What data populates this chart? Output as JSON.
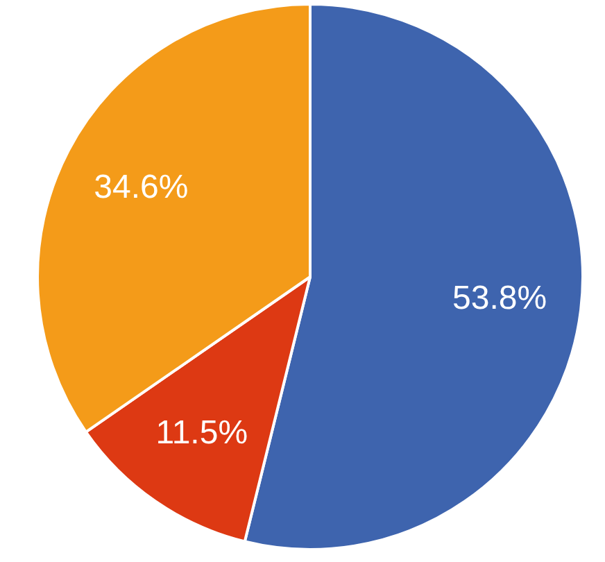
{
  "chart_data": {
    "type": "pie",
    "categories": [
      null,
      null,
      null
    ],
    "values": [
      53.8,
      11.5,
      34.6
    ],
    "colors": [
      "#3e64ae",
      "#dd3913",
      "#f49b19"
    ],
    "value_labels": [
      "53.8%",
      "11.5%",
      "34.6%"
    ]
  }
}
